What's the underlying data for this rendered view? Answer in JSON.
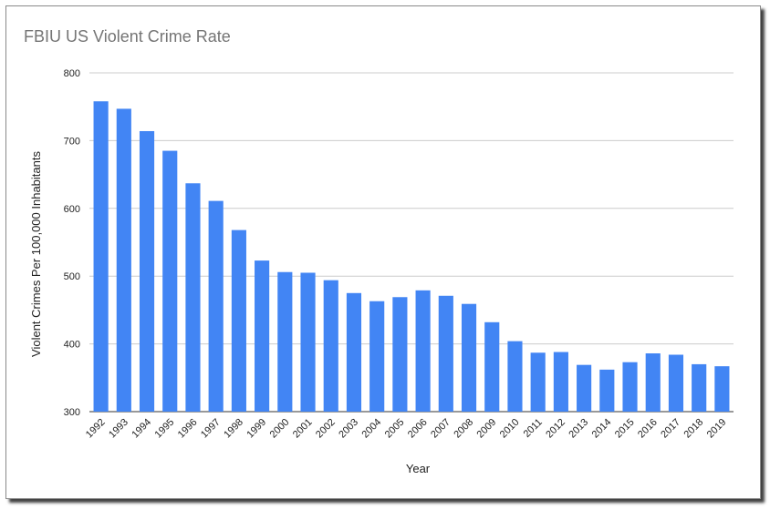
{
  "chart_data": {
    "type": "bar",
    "title": "FBIU US Violent Crime Rate",
    "xlabel": "Year",
    "ylabel": "Violent Crimes Per 100,000 Inhabitants",
    "ylim": [
      300,
      800
    ],
    "yticks": [
      300,
      400,
      500,
      600,
      700,
      800
    ],
    "grid": true,
    "bar_color": "#4285f4",
    "categories": [
      "1992",
      "1993",
      "1994",
      "1995",
      "1996",
      "1997",
      "1998",
      "1999",
      "2000",
      "2001",
      "2002",
      "2003",
      "2004",
      "2005",
      "2006",
      "2007",
      "2008",
      "2009",
      "2010",
      "2011",
      "2012",
      "2013",
      "2014",
      "2015",
      "2016",
      "2017",
      "2018",
      "2019"
    ],
    "values": [
      758,
      747,
      714,
      685,
      637,
      611,
      568,
      523,
      506,
      505,
      494,
      475,
      463,
      469,
      479,
      471,
      459,
      432,
      404,
      387,
      388,
      369,
      362,
      373,
      386,
      384,
      370,
      367
    ]
  }
}
